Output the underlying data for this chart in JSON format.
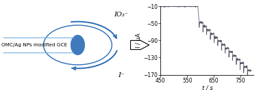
{
  "fig_width": 3.78,
  "fig_height": 1.32,
  "dpi": 100,
  "left_panel_text": "OMC/Ag NPs modified GCE",
  "top_label": "IO₃⁻",
  "bottom_label": "I⁻",
  "plot_xlim": [
    450,
    800
  ],
  "plot_ylim": [
    -170,
    -10
  ],
  "plot_xticks": [
    450,
    550,
    650,
    750
  ],
  "plot_yticks": [
    -170,
    -130,
    -90,
    -50,
    -10
  ],
  "xlabel": "t / s",
  "ylabel": "I / μA",
  "line_color": "#555566",
  "electrode_color": "#2a6cb5",
  "light_blue": "#6aace0",
  "background_color": "#ffffff"
}
